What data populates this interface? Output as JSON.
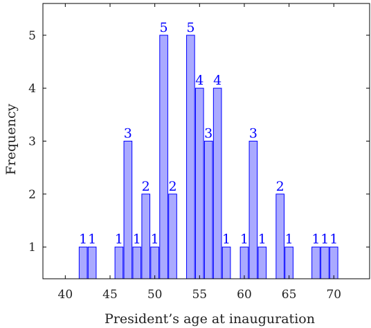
{
  "chart_data": {
    "type": "bar",
    "xlabel": "President’s age at inauguration",
    "ylabel": "Frequency",
    "xlim": [
      37.5,
      74
    ],
    "ylim": [
      0.4,
      5.6
    ],
    "x_ticks": [
      40,
      45,
      50,
      55,
      60,
      65,
      70
    ],
    "y_ticks": [
      1,
      2,
      3,
      4,
      5
    ],
    "grid": false,
    "bar_color": "#aaaaff",
    "bar_edge_color": "#0000ff",
    "label_color": "#0000ff",
    "x": [
      42,
      43,
      46,
      47,
      48,
      49,
      50,
      51,
      52,
      54,
      55,
      56,
      57,
      58,
      60,
      61,
      62,
      64,
      65,
      68,
      69,
      70
    ],
    "values": [
      1,
      1,
      1,
      3,
      1,
      2,
      1,
      5,
      2,
      5,
      4,
      3,
      4,
      1,
      1,
      3,
      1,
      2,
      1,
      1,
      1,
      1
    ]
  }
}
